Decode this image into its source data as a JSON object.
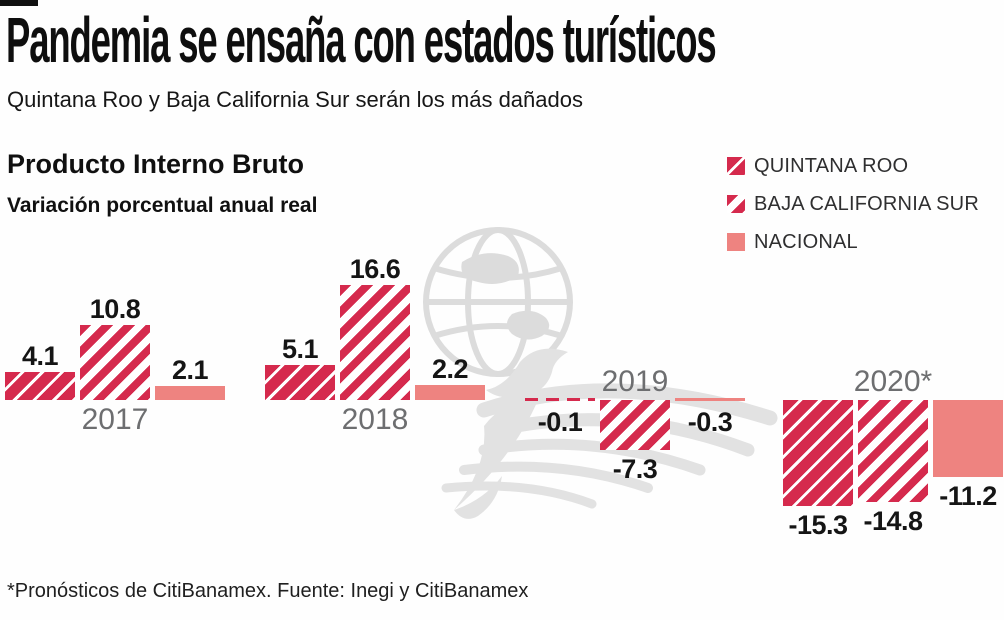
{
  "header": {
    "title": "Pandemia se ensaña con estados turísticos",
    "subtitle": "Quintana Roo y Baja California Sur serán los más dañados"
  },
  "chart_header": {
    "title": "Producto Interno Bruto",
    "subtitle": "Variación porcentual anual real"
  },
  "legend": {
    "position": "top-right",
    "items": [
      {
        "label": "QUINTANA ROO",
        "swatch": "red-with-white-hatch"
      },
      {
        "label": "BAJA CALIFORNIA SUR",
        "swatch": "white-with-red-hatch"
      },
      {
        "label": "NACIONAL",
        "swatch": "solid-salmon"
      }
    ]
  },
  "chart_data": {
    "type": "bar",
    "title": "Producto Interno Bruto",
    "subtitle": "Variación porcentual anual real",
    "ylabel": "Variación porcentual anual real (%)",
    "categories": [
      "2017",
      "2018",
      "2019",
      "2020*"
    ],
    "series": [
      {
        "name": "QUINTANA ROO",
        "values": [
          4.1,
          5.1,
          -0.1,
          -15.3
        ]
      },
      {
        "name": "BAJA CALIFORNIA SUR",
        "values": [
          10.8,
          16.6,
          -7.3,
          -14.8
        ]
      },
      {
        "name": "NACIONAL",
        "values": [
          2.1,
          2.2,
          -0.3,
          -11.2
        ]
      }
    ],
    "baseline": 0,
    "ylim": [
      -17,
      18
    ],
    "grid": false,
    "value_labels": true,
    "category_label_position": [
      "below",
      "below",
      "above",
      "above"
    ],
    "legend_position": "top-right"
  },
  "colors": {
    "quintana_roo_red": "#d52a4d",
    "nacional_salmon": "#ee8380",
    "year_label_gray": "#6d6e70",
    "value_label_ink": "#151515",
    "watermark_gray": "#e2e2e2"
  },
  "watermark": {
    "name": "eagle-globe-logo"
  },
  "footer": {
    "note": "*Pronósticos de CitiBanamex. Fuente: Inegi y CitiBanamex"
  }
}
